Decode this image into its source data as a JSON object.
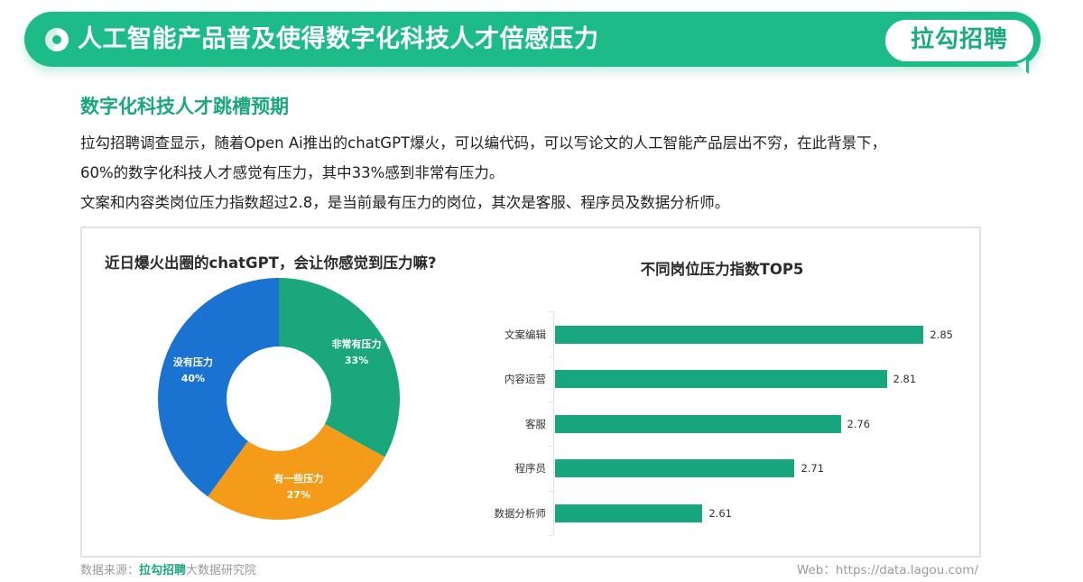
{
  "header": {
    "title": "人工智能产品普及使得数字化科技人才倍感压力",
    "logo_text": "拉勾招聘",
    "accent_color": "#1cbb87"
  },
  "section": {
    "title": "数字化科技人才跳槽预期",
    "paragraphs": [
      "拉勾招聘调查显示，随着Open  Ai推出的chatGPT爆火，可以编代码，可以写论文的人工智能产品层出不穷，在此背景下，",
      "60%的数字化科技人才感觉有压力，其中33%感到非常有压力。",
      "文案和内容类岗位压力指数超过2.8，是当前最有压力的岗位，其次是客服、程序员及数据分析师。"
    ]
  },
  "footer": {
    "source_prefix": "数据来源：",
    "source_brand": "拉勾招聘",
    "source_suffix": "大数据研究院",
    "web": "Web：https://data.lagou.com/"
  },
  "chart_data": [
    {
      "type": "pie",
      "subtype": "donut",
      "title": "近日爆火出圈的chatGPT，会让你感觉到压力嘛?",
      "categories": [
        "非常有压力",
        "有一些压力",
        "没有压力"
      ],
      "values": [
        33,
        27,
        40
      ],
      "value_labels": [
        "33%",
        "27%",
        "40%"
      ],
      "colors": [
        "#1aa77c",
        "#f59b1a",
        "#1a73d1"
      ],
      "start_angle": "12 o'clock, clockwise",
      "legend": "none (labels inside slices)"
    },
    {
      "type": "bar",
      "orientation": "horizontal",
      "title": "不同岗位压力指数TOP5",
      "categories": [
        "文案编辑",
        "内容运营",
        "客服",
        "程序员",
        "数据分析师"
      ],
      "values": [
        2.85,
        2.81,
        2.76,
        2.71,
        2.61
      ],
      "value_labels": [
        "2.85",
        "2.81",
        "2.76",
        "2.71",
        "2.61"
      ],
      "color": "#17a67d",
      "xlim": [
        2.45,
        2.9
      ],
      "xlabel": "",
      "ylabel": "",
      "grid": false,
      "legend": "none"
    }
  ]
}
